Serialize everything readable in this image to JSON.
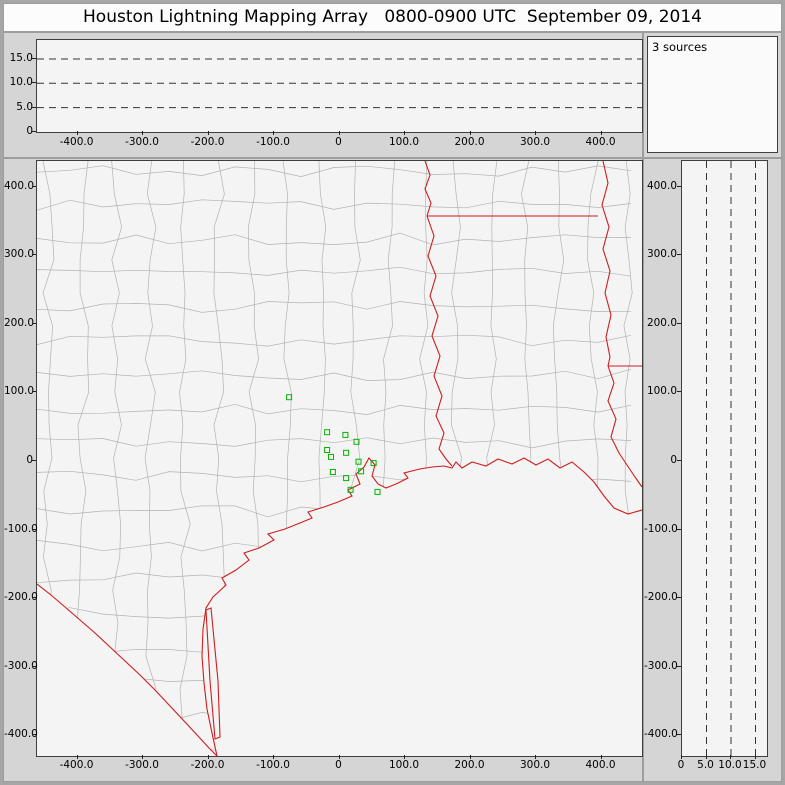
{
  "window": {
    "title": "Houston Lightning Mapping Array   0800-0900 UTC  September 09, 2014"
  },
  "sources_panel": {
    "label": "3 sources"
  },
  "alt_ew_panel": {
    "y_tick_labels": [
      "15.0",
      "10.0",
      "5.0",
      "0"
    ],
    "x_tick_labels": [
      "-400.0",
      "-300.0",
      "-200.0",
      "-100.0",
      "0",
      "100.0",
      "200.0",
      "300.0",
      "400.0"
    ],
    "dashed_altitudes_km": [
      5,
      10,
      15
    ]
  },
  "map_panel": {
    "y_tick_labels": [
      "400.0",
      "300.0",
      "200.0",
      "100.0",
      "0",
      "-100.0",
      "-200.0",
      "-300.0",
      "-400.0"
    ],
    "x_tick_labels": [
      "-400.0",
      "-300.0",
      "-200.0",
      "-100.0",
      "0",
      "100.0",
      "200.0",
      "300.0",
      "400.0"
    ]
  },
  "alt_ns_panel": {
    "x_tick_labels": [
      "0",
      "5.0",
      "10.0",
      "15.0"
    ],
    "y_tick_labels": [
      "400.0",
      "300.0",
      "200.0",
      "100.0",
      "0",
      "-100.0",
      "-200.0",
      "-300.0",
      "-400.0"
    ],
    "dashed_altitudes_km": [
      5,
      10,
      15
    ]
  },
  "colors": {
    "boundary_red": "#cf1d1d",
    "county_gray": "#b2b2b2",
    "station_green": "#00b400",
    "plot_bg": "#f4f4f4",
    "frame_bg": "#d5d5d5"
  },
  "chart_data": [
    {
      "id": "altitude-vs-east-west-km",
      "type": "scatter",
      "title": "",
      "xlabel": "",
      "ylabel": "",
      "xlim": [
        -460,
        460
      ],
      "ylim": [
        0,
        18
      ],
      "x_ticks": [
        -400,
        -300,
        -200,
        -100,
        0,
        100,
        200,
        300,
        400
      ],
      "y_ticks": [
        0,
        5,
        10,
        15
      ],
      "dashed_hlines": [
        5,
        10,
        15
      ],
      "points": []
    },
    {
      "id": "plan-view-map-km",
      "type": "scatter",
      "title": "",
      "xlabel": "",
      "ylabel": "",
      "xlim": [
        -460,
        460
      ],
      "ylim": [
        -437,
        437
      ],
      "x_ticks": [
        -400,
        -300,
        -200,
        -100,
        0,
        100,
        200,
        300,
        400
      ],
      "y_ticks": [
        -400,
        -300,
        -200,
        -100,
        0,
        100,
        200,
        300,
        400
      ],
      "map_layers": [
        "county-boundaries-gray",
        "state-borders-and-coastline-red"
      ],
      "series": [
        {
          "name": "lma-station-markers",
          "marker": "open-square",
          "color": "#00b400",
          "points_km": [
            [
              -77,
              93
            ],
            [
              -19,
              42
            ],
            [
              9,
              38
            ],
            [
              26,
              28
            ],
            [
              -19,
              16
            ],
            [
              10,
              12
            ],
            [
              -13,
              6
            ],
            [
              29,
              -1
            ],
            [
              52,
              -3
            ],
            [
              -10,
              -16
            ],
            [
              33,
              -15
            ],
            [
              10,
              -25
            ],
            [
              17,
              -42
            ],
            [
              58,
              -45
            ]
          ]
        }
      ]
    },
    {
      "id": "altitude-vs-north-south-km",
      "type": "scatter",
      "title": "",
      "xlabel": "",
      "ylabel": "",
      "xlim": [
        0,
        18
      ],
      "ylim": [
        -437,
        437
      ],
      "x_ticks": [
        0,
        5,
        10,
        15
      ],
      "y_ticks": [
        -400,
        -300,
        -200,
        -100,
        0,
        100,
        200,
        300,
        400
      ],
      "dashed_vlines": [
        5,
        10,
        15
      ],
      "points": []
    }
  ]
}
